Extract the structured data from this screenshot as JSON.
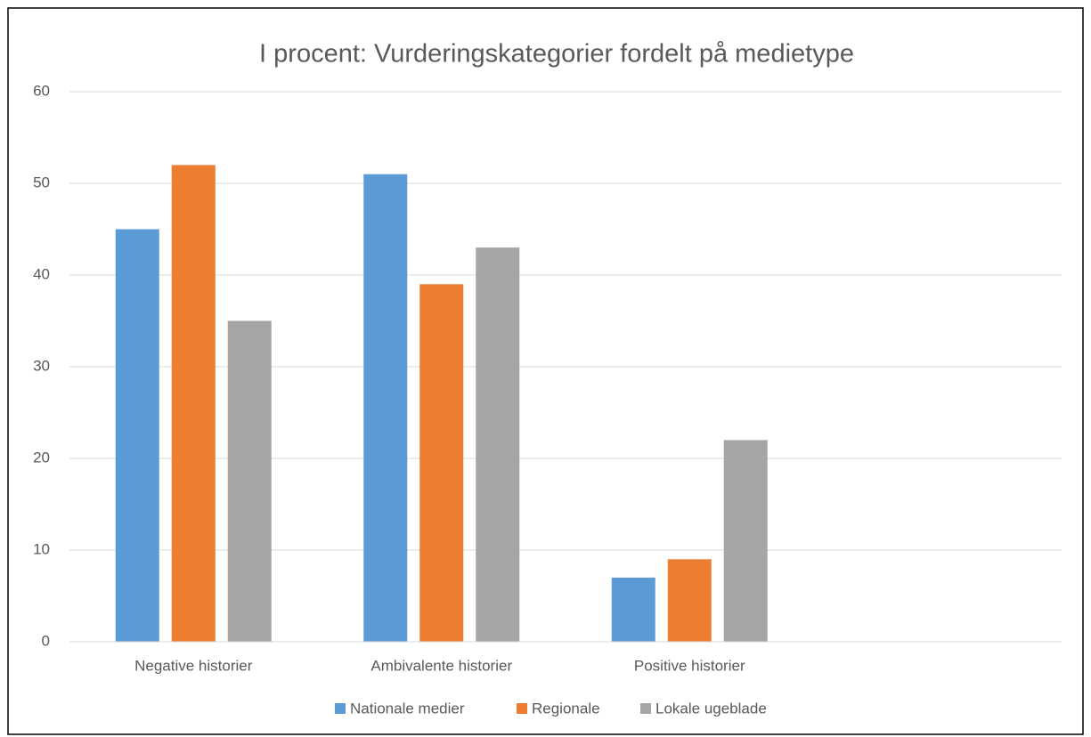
{
  "chart_data": {
    "type": "bar",
    "title": "I procent: Vurderingskategorier fordelt på medietype",
    "categories": [
      "Negative historier",
      "Ambivalente historier",
      "Positive historier",
      null
    ],
    "series": [
      {
        "name": "Nationale medier",
        "color": "#5b9bd5",
        "values": [
          45,
          51,
          7,
          null
        ]
      },
      {
        "name": "Regionale",
        "color": "#ed7d31",
        "values": [
          52,
          39,
          9,
          null
        ]
      },
      {
        "name": "Lokale ugeblade",
        "color": "#a5a5a5",
        "values": [
          35,
          43,
          22,
          null
        ]
      }
    ],
    "ylim": [
      0,
      60
    ],
    "yticks": [
      0,
      10,
      20,
      30,
      40,
      50,
      60
    ],
    "grid": true,
    "legend": "bottom"
  }
}
